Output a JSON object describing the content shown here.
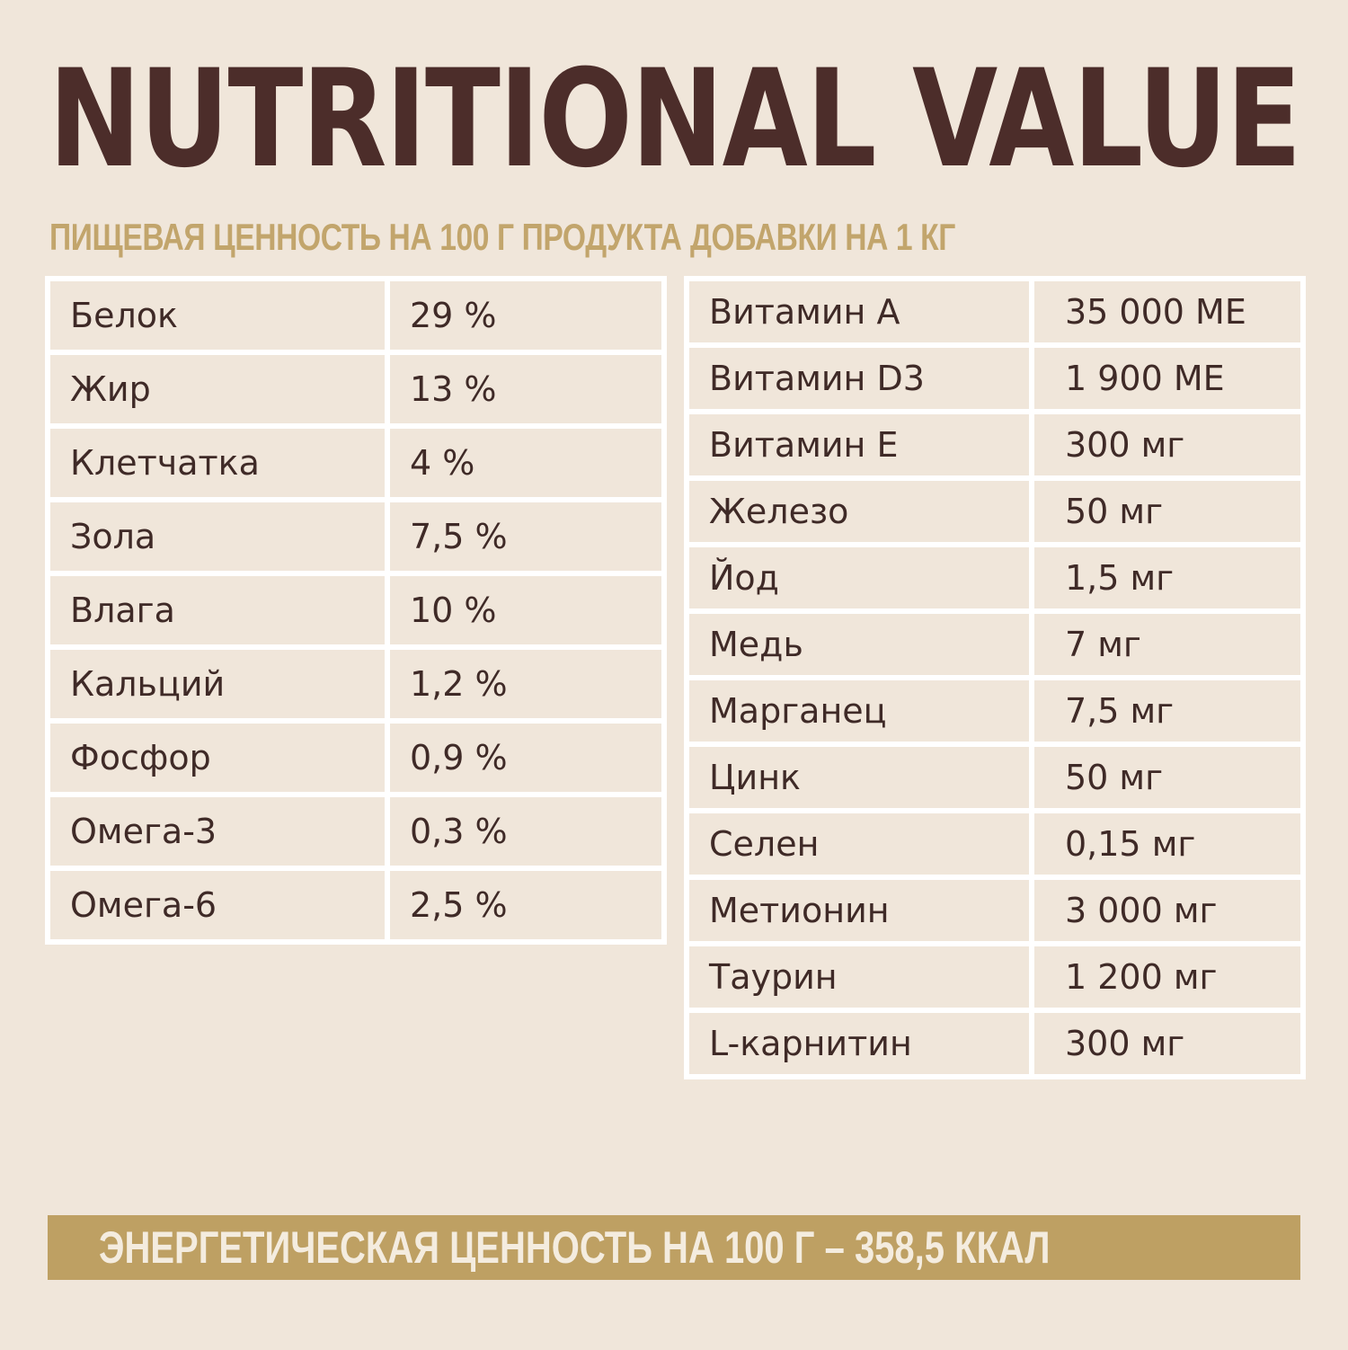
{
  "header": {
    "title": "NUTRITIONAL VALUE",
    "left_subtitle": "ПИЩЕВАЯ ЦЕННОСТЬ НА 100 Г ПРОДУКТА",
    "right_subtitle": "ДОБАВКИ НА 1 КГ"
  },
  "nutrition": [
    {
      "name": "Белок",
      "value": "29 %"
    },
    {
      "name": "Жир",
      "value": "13 %"
    },
    {
      "name": "Клетчатка",
      "value": "4 %"
    },
    {
      "name": "Зола",
      "value": "7,5 %"
    },
    {
      "name": "Влага",
      "value": "10 %"
    },
    {
      "name": "Кальций",
      "value": "1,2 %"
    },
    {
      "name": "Фосфор",
      "value": "0,9 %"
    },
    {
      "name": "Омега-3",
      "value": "0,3 %"
    },
    {
      "name": "Омега-6",
      "value": "2,5 %"
    }
  ],
  "additives": [
    {
      "name": "Витамин А",
      "value": "35 000 МЕ"
    },
    {
      "name": "Витамин D3",
      "value": "1 900 МЕ"
    },
    {
      "name": "Витамин Е",
      "value": "300 мг"
    },
    {
      "name": "Железо",
      "value": "50 мг"
    },
    {
      "name": "Йод",
      "value": "1,5 мг"
    },
    {
      "name": "Медь",
      "value": "7 мг"
    },
    {
      "name": "Марганец",
      "value": "7,5 мг"
    },
    {
      "name": "Цинк",
      "value": "50 мг"
    },
    {
      "name": "Селен",
      "value": "0,15 мг"
    },
    {
      "name": "Метионин",
      "value": "3 000 мг"
    },
    {
      "name": "Таурин",
      "value": "1 200 мг"
    },
    {
      "name": "L-карнитин",
      "value": "300 мг"
    }
  ],
  "footer": {
    "energy": "ЭНЕРГЕТИЧЕСКАЯ ЦЕННОСТЬ НА 100 Г – 358,5 ККАЛ"
  },
  "colors": {
    "background": "#f0e6da",
    "title": "#4c2d2a",
    "accent_gold": "#bea063",
    "table_border": "#ffffff"
  }
}
